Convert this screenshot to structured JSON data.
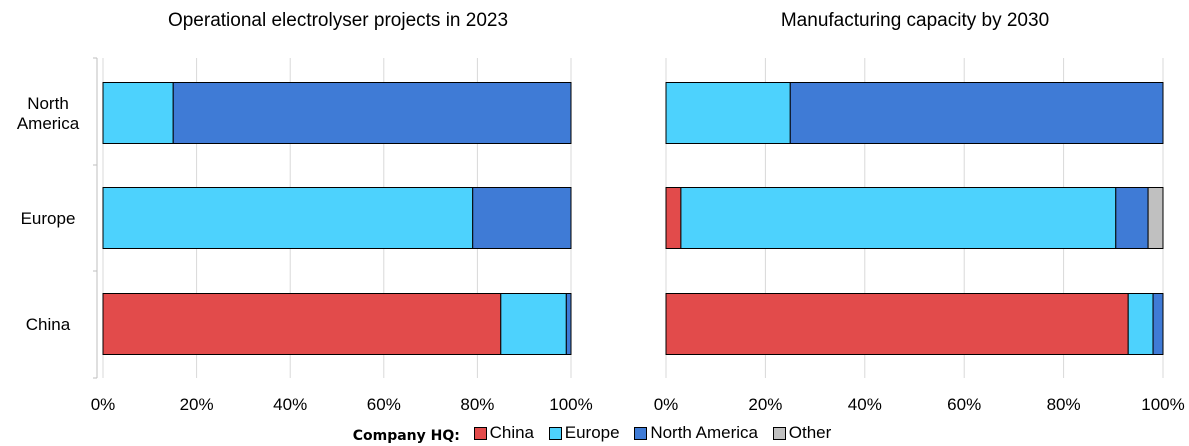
{
  "legend": {
    "label": "Company HQ:",
    "items": [
      {
        "name": "China",
        "color": "#e24b4b"
      },
      {
        "name": "Europe",
        "color": "#4dd2fd"
      },
      {
        "name": "North America",
        "color": "#3f7bd6"
      },
      {
        "name": "Other",
        "color": "#c0c0c0"
      }
    ]
  },
  "chart_data": [
    {
      "type": "bar",
      "orientation": "horizontal",
      "stacked": true,
      "title": "Operational electrolyser projects in 2023",
      "categories": [
        "North America",
        "Europe",
        "China"
      ],
      "series": [
        {
          "name": "China",
          "values": [
            0,
            0,
            85
          ]
        },
        {
          "name": "Europe",
          "values": [
            15,
            79,
            14
          ]
        },
        {
          "name": "North America",
          "values": [
            85,
            21,
            1
          ]
        },
        {
          "name": "Other",
          "values": [
            0,
            0,
            0
          ]
        }
      ],
      "xlim": [
        0,
        100
      ],
      "xticks": [
        "0%",
        "20%",
        "40%",
        "60%",
        "80%",
        "100%"
      ],
      "grid": true
    },
    {
      "type": "bar",
      "orientation": "horizontal",
      "stacked": true,
      "title": "Manufacturing capacity by 2030",
      "categories": [
        "North America",
        "Europe",
        "China"
      ],
      "series": [
        {
          "name": "China",
          "values": [
            0,
            3,
            93
          ]
        },
        {
          "name": "Europe",
          "values": [
            25,
            87.5,
            5
          ]
        },
        {
          "name": "North America",
          "values": [
            75,
            6.5,
            2
          ]
        },
        {
          "name": "Other",
          "values": [
            0,
            3,
            0
          ]
        }
      ],
      "xlim": [
        0,
        100
      ],
      "xticks": [
        "0%",
        "20%",
        "40%",
        "60%",
        "80%",
        "100%"
      ],
      "grid": true
    }
  ]
}
